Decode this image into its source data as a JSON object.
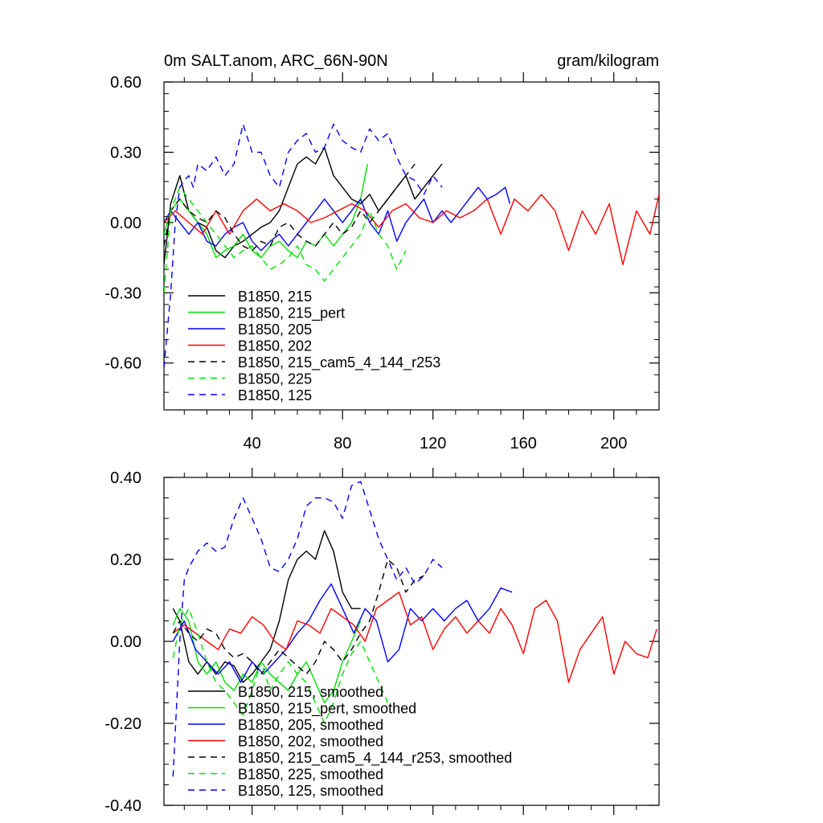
{
  "chart_data": [
    {
      "type": "line",
      "title": "0m SALT.anom, ARC_66N-90N",
      "units": "gram/kilogram",
      "xlabel": "",
      "ylabel": "",
      "xlim": [
        1,
        220
      ],
      "ylim": [
        -0.8,
        0.6
      ],
      "x_ticks": [
        40,
        80,
        120,
        160,
        200
      ],
      "x_tick_labels": [
        "40",
        "80",
        "120",
        "160",
        "200"
      ],
      "y_ticks": [
        0.6,
        0.3,
        0.0,
        -0.3,
        -0.6
      ],
      "y_tick_labels": [
        "0.60",
        "0.30",
        "0.00",
        "-0.30",
        "-0.60"
      ],
      "legend_position": "bottom-left",
      "series": [
        {
          "name": "B1850, 215",
          "color": "#000000",
          "dash": "solid",
          "x": [
            1,
            4,
            8,
            12,
            16,
            20,
            24,
            28,
            32,
            36,
            40,
            44,
            48,
            52,
            56,
            60,
            64,
            68,
            72,
            76,
            80,
            84,
            88,
            92,
            96,
            100,
            104,
            108,
            112,
            116,
            120,
            124
          ],
          "y": [
            -0.18,
            0.08,
            0.2,
            0.05,
            0.0,
            -0.02,
            -0.12,
            -0.15,
            -0.1,
            -0.08,
            -0.05,
            -0.02,
            0.0,
            0.05,
            0.15,
            0.25,
            0.28,
            0.25,
            0.32,
            0.2,
            0.15,
            0.1,
            0.08,
            0.12,
            0.05,
            0.1,
            0.15,
            0.2,
            0.1,
            0.15,
            0.2,
            0.25
          ]
        },
        {
          "name": "B1850, 215_pert",
          "color": "#00e000",
          "dash": "solid",
          "x": [
            1,
            4,
            8,
            12,
            16,
            20,
            24,
            28,
            32,
            36,
            40,
            44,
            48,
            52,
            56,
            60,
            64,
            68,
            72,
            76,
            80,
            84,
            88,
            91
          ],
          "y": [
            -0.05,
            0.05,
            0.1,
            0.05,
            0.0,
            -0.05,
            -0.15,
            -0.12,
            -0.1,
            -0.05,
            -0.12,
            -0.15,
            -0.1,
            -0.08,
            -0.12,
            -0.15,
            -0.08,
            -0.1,
            -0.05,
            -0.1,
            -0.05,
            0.0,
            0.1,
            0.25
          ]
        },
        {
          "name": "B1850, 205",
          "color": "#0000ff",
          "dash": "solid",
          "x": [
            1,
            4,
            8,
            12,
            16,
            20,
            24,
            28,
            32,
            36,
            40,
            44,
            48,
            52,
            56,
            60,
            64,
            68,
            72,
            76,
            80,
            84,
            88,
            92,
            96,
            100,
            104,
            108,
            112,
            116,
            120,
            124,
            128,
            132,
            136,
            140,
            144,
            148,
            152,
            154
          ],
          "y": [
            0.0,
            0.05,
            0.0,
            -0.05,
            0.0,
            -0.08,
            -0.1,
            -0.05,
            -0.02,
            0.0,
            -0.08,
            -0.12,
            -0.08,
            -0.05,
            -0.1,
            -0.05,
            0.0,
            0.05,
            0.1,
            0.05,
            0.0,
            0.05,
            0.1,
            0.0,
            -0.05,
            0.05,
            -0.08,
            0.0,
            0.05,
            0.1,
            0.0,
            0.05,
            0.0,
            0.05,
            0.1,
            0.15,
            0.1,
            0.12,
            0.15,
            0.08
          ]
        },
        {
          "name": "B1850, 202",
          "color": "#ff0000",
          "dash": "solid",
          "x": [
            1,
            6,
            12,
            18,
            24,
            30,
            36,
            42,
            48,
            54,
            60,
            66,
            72,
            78,
            84,
            90,
            96,
            102,
            108,
            114,
            120,
            126,
            132,
            138,
            144,
            150,
            156,
            162,
            168,
            174,
            180,
            186,
            192,
            198,
            204,
            210,
            216,
            220
          ],
          "y": [
            0.0,
            0.05,
            0.0,
            -0.05,
            0.05,
            -0.05,
            0.05,
            0.1,
            0.05,
            0.08,
            0.05,
            0.0,
            0.02,
            0.05,
            0.08,
            0.05,
            -0.02,
            0.05,
            0.08,
            0.02,
            0.0,
            0.05,
            0.02,
            0.05,
            0.1,
            -0.05,
            0.1,
            0.05,
            0.12,
            0.05,
            -0.12,
            0.05,
            -0.05,
            0.08,
            -0.18,
            0.05,
            -0.05,
            0.12
          ]
        },
        {
          "name": "B1850, 215_cam5_4_144_r253",
          "color": "#000000",
          "dash": "8,6",
          "x": [
            1,
            4,
            8,
            12,
            16,
            20,
            24,
            28,
            32,
            36,
            40,
            44,
            48,
            52,
            56,
            60,
            64,
            68,
            72,
            76,
            80,
            84,
            88,
            92,
            96,
            100,
            104,
            108,
            112
          ],
          "y": [
            -0.1,
            0.05,
            0.1,
            0.05,
            0.02,
            0.0,
            0.05,
            0.02,
            -0.05,
            -0.1,
            -0.12,
            -0.08,
            -0.1,
            -0.02,
            0.0,
            -0.05,
            -0.08,
            -0.1,
            -0.05,
            0.0,
            -0.05,
            -0.02,
            0.05,
            0.0,
            0.05,
            0.1,
            0.15,
            0.2,
            0.25
          ]
        },
        {
          "name": "B1850, 225",
          "color": "#00e000",
          "dash": "8,6",
          "x": [
            1,
            4,
            8,
            12,
            16,
            20,
            24,
            28,
            32,
            36,
            40,
            44,
            48,
            52,
            56,
            60,
            64,
            68,
            72,
            76,
            80,
            84,
            88,
            92,
            96,
            100,
            104,
            108
          ],
          "y": [
            -0.3,
            0.05,
            0.15,
            0.1,
            0.05,
            0.0,
            -0.05,
            -0.1,
            -0.15,
            -0.12,
            -0.1,
            -0.15,
            -0.2,
            -0.18,
            -0.15,
            -0.1,
            -0.18,
            -0.2,
            -0.25,
            -0.2,
            -0.15,
            -0.1,
            -0.05,
            0.05,
            -0.05,
            -0.1,
            -0.2,
            -0.12
          ]
        },
        {
          "name": "B1850, 125",
          "color": "#0000ff",
          "dash": "8,6",
          "x": [
            1,
            4,
            6,
            8,
            10,
            12,
            14,
            16,
            20,
            24,
            28,
            32,
            36,
            40,
            44,
            48,
            52,
            56,
            60,
            64,
            68,
            72,
            76,
            80,
            84,
            88,
            92,
            96,
            100,
            104,
            108,
            112,
            116,
            120,
            124
          ],
          "y": [
            -0.62,
            -0.3,
            0.0,
            0.15,
            0.18,
            0.2,
            0.15,
            0.25,
            0.22,
            0.28,
            0.2,
            0.25,
            0.42,
            0.3,
            0.3,
            0.2,
            0.15,
            0.3,
            0.35,
            0.38,
            0.3,
            0.32,
            0.42,
            0.35,
            0.32,
            0.3,
            0.4,
            0.35,
            0.38,
            0.28,
            0.2,
            0.18,
            0.12,
            0.2,
            0.15
          ]
        }
      ]
    },
    {
      "type": "line",
      "title": "",
      "xlabel": "",
      "ylabel": "",
      "xlim": [
        1,
        220
      ],
      "ylim": [
        -0.4,
        0.4
      ],
      "x_ticks": [
        40,
        80,
        120,
        160,
        200
      ],
      "y_ticks": [
        0.4,
        0.2,
        0.0,
        -0.2,
        -0.4
      ],
      "y_tick_labels": [
        "0.40",
        "0.20",
        "0.00",
        "-0.20",
        "-0.40"
      ],
      "legend_position": "bottom-left",
      "series": [
        {
          "name": "B1850, 215, smoothed",
          "color": "#000000",
          "dash": "solid",
          "x": [
            5,
            8,
            12,
            16,
            20,
            24,
            28,
            32,
            36,
            40,
            44,
            48,
            52,
            56,
            60,
            64,
            68,
            72,
            76,
            80,
            84,
            88
          ],
          "y": [
            0.08,
            0.05,
            -0.05,
            -0.08,
            -0.05,
            -0.08,
            -0.05,
            -0.06,
            -0.1,
            -0.08,
            -0.05,
            -0.02,
            0.05,
            0.15,
            0.2,
            0.22,
            0.2,
            0.27,
            0.22,
            0.12,
            0.08,
            0.08
          ]
        },
        {
          "name": "B1850, 215_pert, smoothed",
          "color": "#00e000",
          "dash": "solid",
          "x": [
            5,
            8,
            12,
            16,
            20,
            24,
            28,
            32,
            36,
            40,
            44,
            48,
            52,
            56,
            60,
            64,
            68,
            72,
            76,
            80,
            84,
            88
          ],
          "y": [
            0.04,
            0.08,
            0.05,
            -0.05,
            -0.08,
            -0.05,
            -0.1,
            -0.12,
            -0.08,
            -0.1,
            -0.05,
            -0.08,
            -0.1,
            -0.12,
            -0.08,
            -0.05,
            -0.1,
            -0.15,
            -0.12,
            -0.05,
            0.0,
            0.05
          ]
        },
        {
          "name": "B1850, 205, smoothed",
          "color": "#0000ff",
          "dash": "solid",
          "x": [
            5,
            10,
            15,
            20,
            25,
            30,
            35,
            40,
            45,
            50,
            55,
            60,
            65,
            70,
            75,
            80,
            85,
            90,
            95,
            100,
            105,
            110,
            115,
            120,
            125,
            130,
            135,
            140,
            145,
            150,
            155
          ],
          "y": [
            0.0,
            0.05,
            -0.02,
            -0.05,
            -0.08,
            -0.05,
            -0.1,
            -0.05,
            -0.08,
            -0.05,
            -0.02,
            0.02,
            0.05,
            0.1,
            0.14,
            0.08,
            0.02,
            0.08,
            0.05,
            -0.05,
            -0.02,
            0.08,
            0.05,
            0.08,
            0.05,
            0.08,
            0.1,
            0.05,
            0.08,
            0.13,
            0.12
          ]
        },
        {
          "name": "B1850, 202, smoothed",
          "color": "#ff0000",
          "dash": "solid",
          "x": [
            5,
            10,
            15,
            20,
            25,
            30,
            35,
            40,
            45,
            50,
            55,
            60,
            65,
            70,
            75,
            80,
            85,
            90,
            95,
            100,
            105,
            110,
            115,
            120,
            125,
            130,
            135,
            140,
            145,
            150,
            155,
            160,
            165,
            170,
            175,
            180,
            185,
            190,
            195,
            200,
            205,
            210,
            215,
            219
          ],
          "y": [
            0.02,
            0.04,
            0.02,
            0.0,
            -0.02,
            0.03,
            0.02,
            0.06,
            0.04,
            0.0,
            -0.02,
            0.05,
            0.04,
            0.02,
            0.08,
            0.06,
            0.04,
            0.0,
            0.08,
            0.1,
            0.12,
            0.04,
            0.06,
            -0.02,
            0.03,
            0.06,
            0.02,
            0.05,
            0.02,
            0.08,
            0.04,
            -0.03,
            0.08,
            0.1,
            0.05,
            -0.1,
            -0.02,
            0.02,
            0.06,
            -0.08,
            0.0,
            -0.03,
            -0.04,
            0.03
          ]
        },
        {
          "name": "B1850, 215_cam5_4_144_r253, smoothed",
          "color": "#000000",
          "dash": "8,6",
          "x": [
            5,
            8,
            12,
            16,
            20,
            24,
            28,
            32,
            36,
            40,
            44,
            48,
            52,
            56,
            60,
            64,
            68,
            72,
            76,
            80,
            84,
            88,
            92,
            96,
            100,
            104,
            108,
            112,
            116
          ],
          "y": [
            0.02,
            0.05,
            0.02,
            0.0,
            0.03,
            0.02,
            -0.02,
            -0.04,
            -0.03,
            -0.05,
            -0.08,
            -0.05,
            -0.02,
            -0.04,
            -0.06,
            -0.08,
            -0.05,
            0.0,
            -0.02,
            -0.05,
            -0.02,
            0.02,
            0.05,
            0.12,
            0.2,
            0.18,
            0.12,
            0.15,
            0.16
          ]
        },
        {
          "name": "B1850, 225, smoothed",
          "color": "#00e000",
          "dash": "8,6",
          "x": [
            5,
            8,
            12,
            16,
            20,
            24,
            28,
            32,
            36,
            40,
            44,
            48,
            52,
            56,
            60,
            64,
            68,
            72,
            76,
            80,
            84,
            88,
            92,
            96,
            100
          ],
          "y": [
            -0.04,
            0.04,
            0.08,
            0.02,
            -0.05,
            -0.1,
            -0.12,
            -0.15,
            -0.18,
            -0.12,
            -0.05,
            -0.12,
            -0.08,
            -0.05,
            -0.08,
            -0.1,
            -0.15,
            -0.2,
            -0.15,
            -0.08,
            -0.03,
            0.0,
            -0.05,
            -0.1,
            -0.15
          ]
        },
        {
          "name": "B1850, 125, smoothed",
          "color": "#0000ff",
          "dash": "8,6",
          "x": [
            5,
            8,
            10,
            12,
            14,
            16,
            20,
            24,
            28,
            32,
            36,
            40,
            44,
            48,
            52,
            56,
            60,
            64,
            68,
            72,
            76,
            80,
            84,
            88,
            92,
            96,
            100,
            104,
            108,
            112,
            116,
            120,
            124
          ],
          "y": [
            -0.33,
            0.0,
            0.15,
            0.18,
            0.2,
            0.22,
            0.24,
            0.22,
            0.23,
            0.3,
            0.35,
            0.3,
            0.25,
            0.18,
            0.17,
            0.2,
            0.25,
            0.33,
            0.35,
            0.35,
            0.34,
            0.3,
            0.38,
            0.39,
            0.32,
            0.25,
            0.2,
            0.15,
            0.18,
            0.14,
            0.16,
            0.2,
            0.18
          ]
        }
      ]
    }
  ]
}
